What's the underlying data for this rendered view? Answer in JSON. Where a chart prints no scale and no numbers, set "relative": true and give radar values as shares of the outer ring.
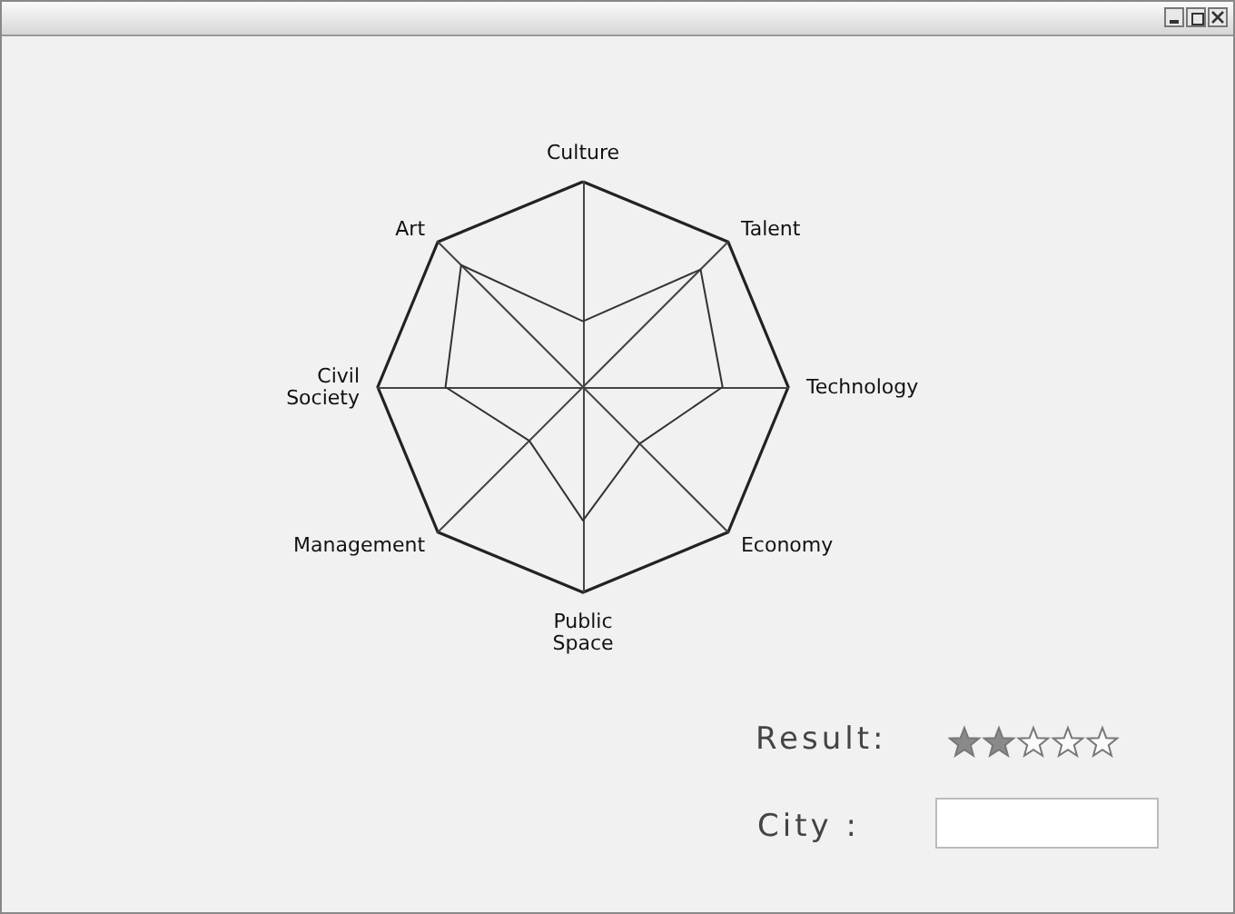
{
  "chart_data": {
    "type": "radar",
    "relative": true,
    "categories": [
      "Culture",
      "Talent",
      "Technology",
      "Economy",
      "Public Space",
      "Management",
      "Civil Society",
      "Art"
    ],
    "series": [
      {
        "color": "#333333",
        "values": [
          0.32,
          0.81,
          0.68,
          0.39,
          0.65,
          0.37,
          0.67,
          0.84
        ]
      }
    ],
    "marker": "none",
    "line_style": "solid",
    "grid": true,
    "annotations": [
      "Result:",
      "City :"
    ]
  }
}
